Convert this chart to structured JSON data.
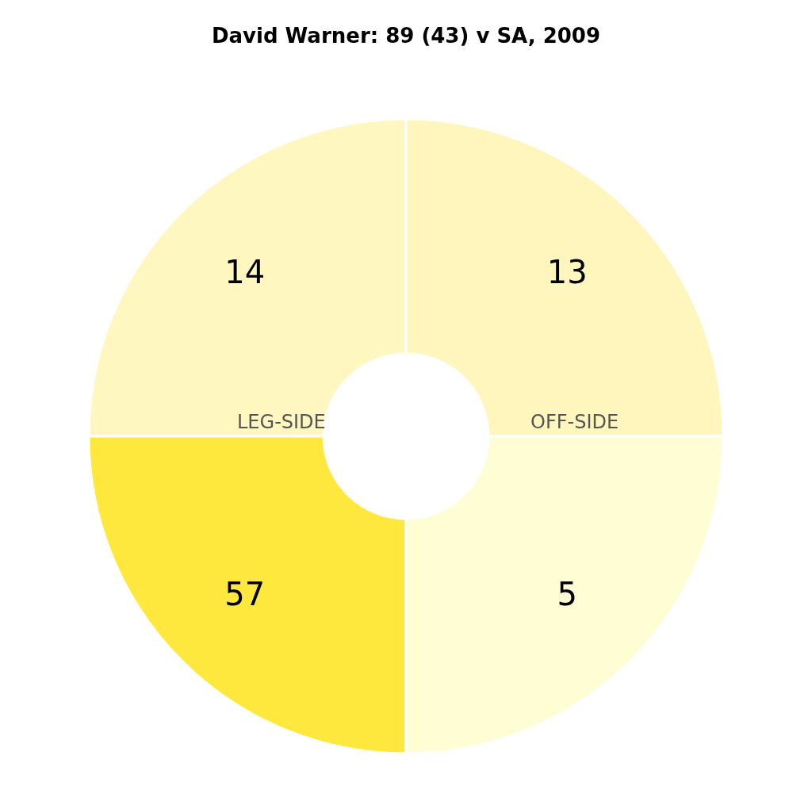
{
  "chart_data": {
    "type": "other",
    "title": "David Warner: 89 (43) v SA, 2009",
    "categories": [
      null,
      null,
      null,
      null
    ],
    "values": [
      14,
      13,
      57,
      5
    ],
    "colors": [
      "#fff7bf",
      "#fff6bd",
      "#ffe83e",
      "#fffdd4"
    ],
    "data_labels": true,
    "annotations": [
      "LEG-SIDE",
      "OFF-SIDE"
    ]
  }
}
